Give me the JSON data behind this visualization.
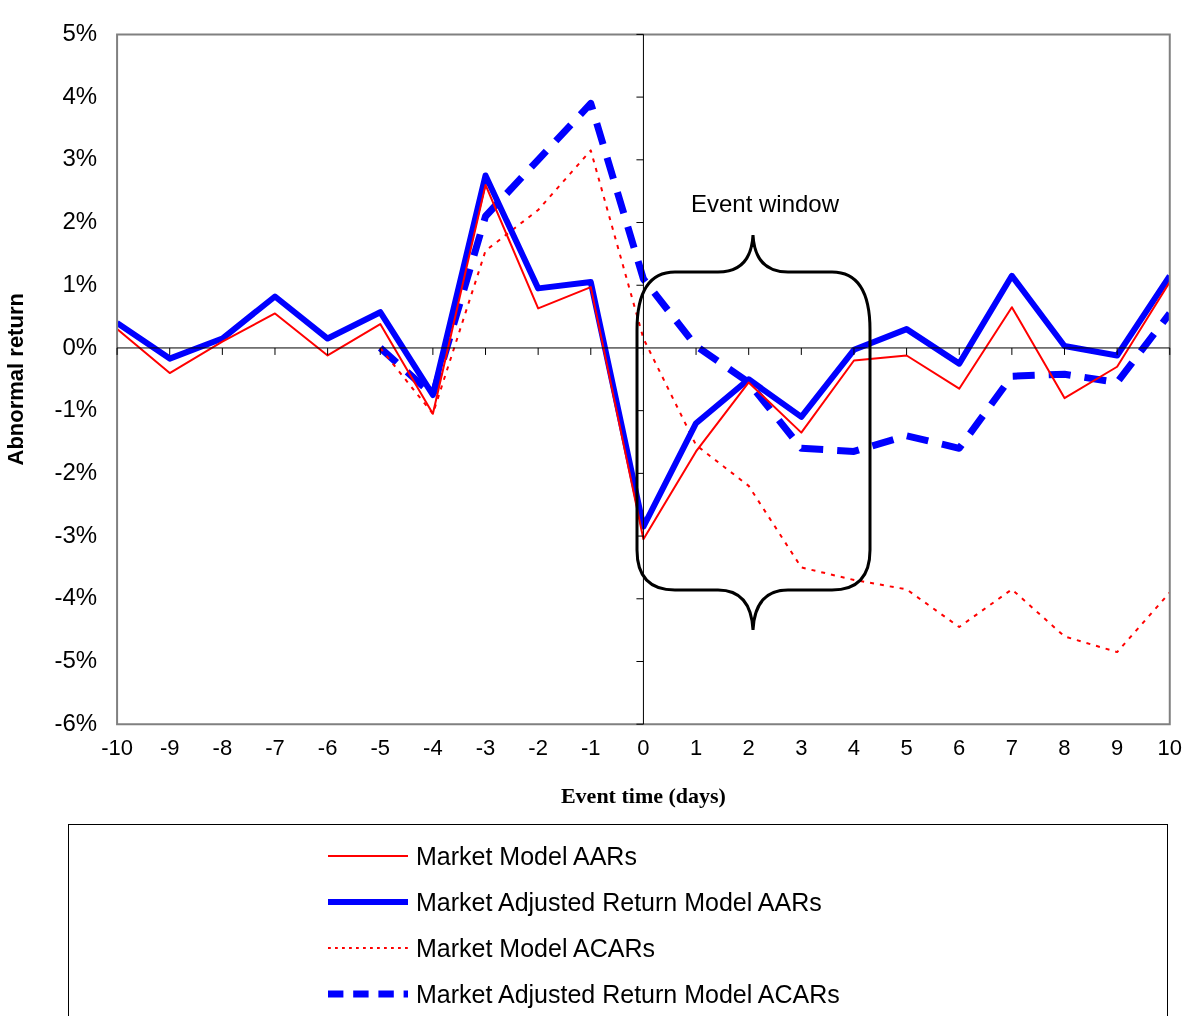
{
  "chart_data": {
    "type": "line",
    "xlabel": "Event time (days)",
    "ylabel": "Abnormal return",
    "x": [
      -10,
      -9,
      -8,
      -7,
      -6,
      -5,
      -4,
      -3,
      -2,
      -1,
      0,
      1,
      2,
      3,
      4,
      5,
      6,
      7,
      8,
      9,
      10
    ],
    "series": [
      {
        "name": "Market Model AARs",
        "color": "#ff0000",
        "line_style": "solid",
        "values": [
          0.3,
          -0.4,
          0.1,
          0.55,
          -0.12,
          0.38,
          -1.05,
          2.6,
          0.63,
          0.97,
          -3.05,
          -1.65,
          -0.55,
          -1.35,
          -0.2,
          -0.12,
          -0.65,
          0.65,
          -0.8,
          -0.3,
          1.05
        ]
      },
      {
        "name": "Market Adjusted Return Model AARs",
        "color": "#0000ff",
        "line_style": "solid",
        "values": [
          0.4,
          -0.17,
          0.15,
          0.82,
          0.15,
          0.57,
          -0.75,
          2.75,
          0.95,
          1.05,
          -2.85,
          -1.2,
          -0.5,
          -1.1,
          -0.03,
          0.3,
          -0.25,
          1.15,
          0.03,
          -0.12,
          1.15
        ]
      },
      {
        "name": "Market Model ACARs",
        "color": "#ff0000",
        "line_style": "dotted",
        "values": [
          null,
          null,
          null,
          null,
          null,
          0,
          -1.05,
          1.55,
          2.2,
          3.15,
          0.15,
          -1.55,
          -2.2,
          -3.5,
          -3.7,
          -3.85,
          -4.45,
          -3.85,
          -4.6,
          -4.85,
          -3.9
        ]
      },
      {
        "name": "Market Adjusted Return Model ACARs",
        "color": "#0000ff",
        "line_style": "dashed",
        "values": [
          null,
          null,
          null,
          null,
          null,
          0,
          -0.75,
          2.1,
          3.0,
          3.9,
          1.1,
          0.03,
          -0.55,
          -1.6,
          -1.65,
          -1.4,
          -1.6,
          -0.45,
          -0.42,
          -0.55,
          0.55
        ]
      }
    ],
    "xlim": [
      -10,
      10
    ],
    "xticks": [
      -10,
      -9,
      -8,
      -7,
      -6,
      -5,
      -4,
      -3,
      -2,
      -1,
      0,
      1,
      2,
      3,
      4,
      5,
      6,
      7,
      8,
      9,
      10
    ],
    "ylim": [
      -6,
      5
    ],
    "yticks": [
      {
        "value": -6,
        "label": "-6%"
      },
      {
        "value": -5,
        "label": "-5%"
      },
      {
        "value": -4,
        "label": "-4%"
      },
      {
        "value": -3,
        "label": "-3%"
      },
      {
        "value": -2,
        "label": "-2%"
      },
      {
        "value": -1,
        "label": "-1%"
      },
      {
        "value": 0,
        "label": "0%"
      },
      {
        "value": 1,
        "label": "1%"
      },
      {
        "value": 2,
        "label": "2%"
      },
      {
        "value": 3,
        "label": "3%"
      },
      {
        "value": 4,
        "label": "4%"
      },
      {
        "value": 5,
        "label": "5%"
      }
    ],
    "annotations": [
      "Event window"
    ],
    "legend": "bottom",
    "marker": "none"
  }
}
